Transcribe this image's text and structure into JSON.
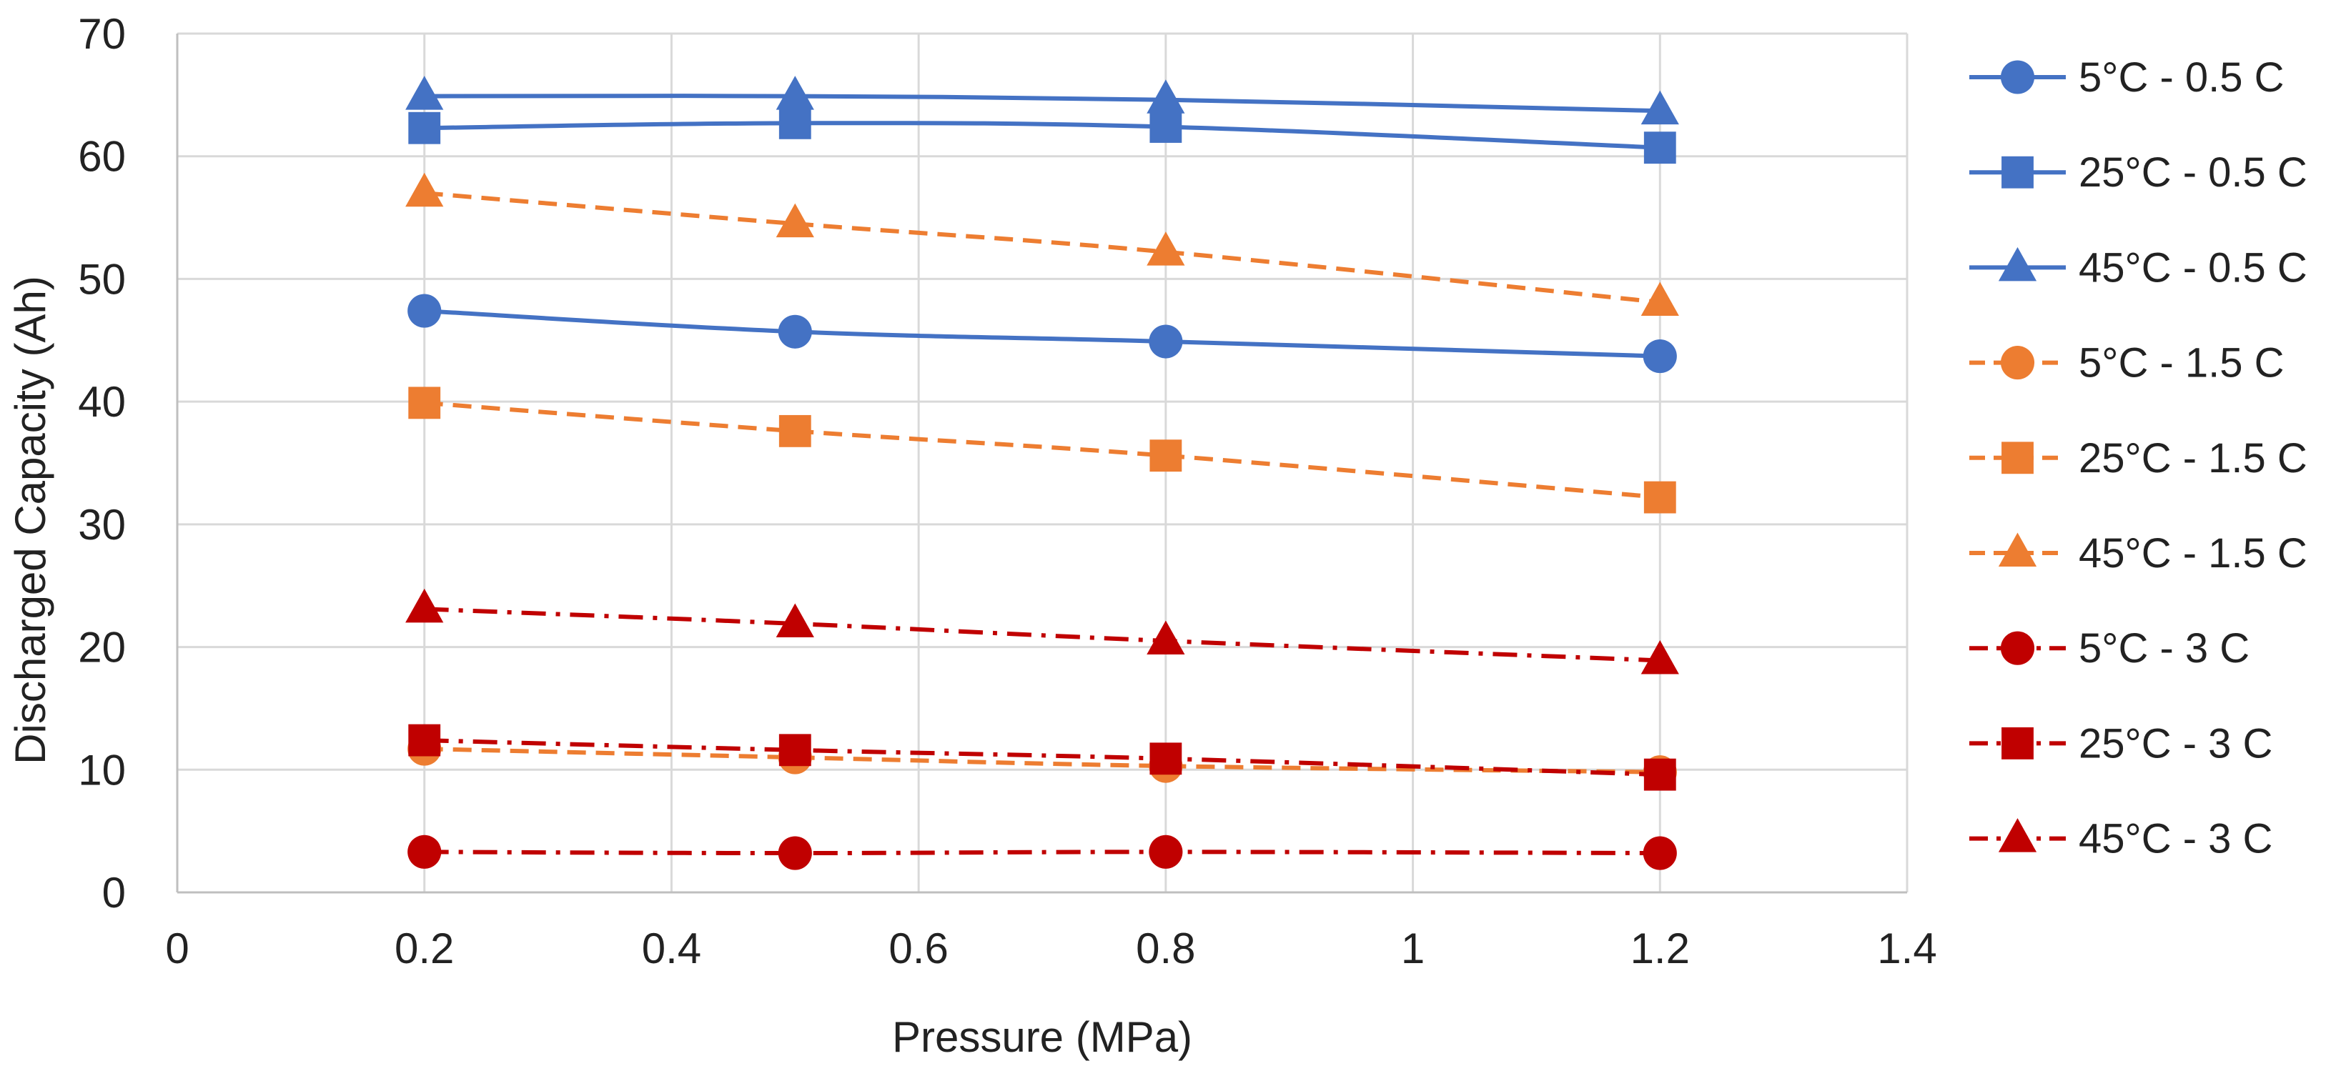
{
  "chart_data": {
    "type": "line",
    "title": "",
    "xlabel": "Pressure (MPa)",
    "ylabel": "Discharged Capacity (Ah)",
    "xlim": [
      0,
      1.4
    ],
    "ylim": [
      0,
      70
    ],
    "xticks": [
      0,
      0.2,
      0.4,
      0.6,
      0.8,
      1,
      1.2,
      1.4
    ],
    "yticks": [
      0,
      10,
      20,
      30,
      40,
      50,
      60,
      70
    ],
    "xtick_labels": [
      "0",
      "0.2",
      "0.4",
      "0.6",
      "0.8",
      "1",
      "1.2",
      "1.4"
    ],
    "ytick_labels": [
      "0",
      "10",
      "20",
      "30",
      "40",
      "50",
      "60",
      "70"
    ],
    "grid": true,
    "legend_position": "right",
    "x": [
      0.2,
      0.5,
      0.8,
      1.2
    ],
    "series": [
      {
        "name": "5°C - 0.5 C",
        "values": [
          47.4,
          45.7,
          44.9,
          43.7
        ],
        "color": "#4472C4",
        "marker": "circle",
        "dash": "solid"
      },
      {
        "name": "25°C - 0.5 C",
        "values": [
          62.3,
          62.7,
          62.4,
          60.7
        ],
        "color": "#4472C4",
        "marker": "square",
        "dash": "solid"
      },
      {
        "name": "45°C - 0.5 C",
        "values": [
          64.9,
          64.9,
          64.6,
          63.7
        ],
        "color": "#4472C4",
        "marker": "triangle",
        "dash": "solid"
      },
      {
        "name": "5°C - 1.5 C",
        "values": [
          11.7,
          11.0,
          10.3,
          9.8
        ],
        "color": "#ED7D31",
        "marker": "circle",
        "dash": "dash"
      },
      {
        "name": "25°C - 1.5 C",
        "values": [
          39.9,
          37.6,
          35.6,
          32.2
        ],
        "color": "#ED7D31",
        "marker": "square",
        "dash": "dash"
      },
      {
        "name": "45°C - 1.5 C",
        "values": [
          57.0,
          54.5,
          52.2,
          48.1
        ],
        "color": "#ED7D31",
        "marker": "triangle",
        "dash": "dash"
      },
      {
        "name": "5°C - 3 C",
        "values": [
          3.3,
          3.2,
          3.3,
          3.2
        ],
        "color": "#C00000",
        "marker": "circle",
        "dash": "dashdot"
      },
      {
        "name": "25°C - 3 C",
        "values": [
          12.4,
          11.6,
          10.9,
          9.6
        ],
        "color": "#C00000",
        "marker": "square",
        "dash": "dashdot"
      },
      {
        "name": "45°C - 3 C",
        "values": [
          23.1,
          21.9,
          20.5,
          18.9
        ],
        "color": "#C00000",
        "marker": "triangle",
        "dash": "dashdot"
      }
    ]
  }
}
